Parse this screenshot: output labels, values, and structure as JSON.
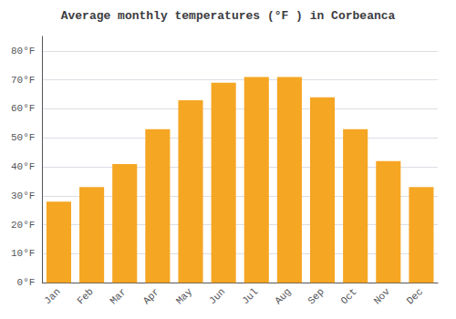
{
  "chart_data": {
    "type": "bar",
    "title": "Average monthly temperatures (°F ) in Corbeanca",
    "categories": [
      "Jan",
      "Feb",
      "Mar",
      "Apr",
      "May",
      "Jun",
      "Jul",
      "Aug",
      "Sep",
      "Oct",
      "Nov",
      "Dec"
    ],
    "values": [
      28,
      33,
      41,
      53,
      63,
      69,
      71,
      71,
      64,
      53,
      42,
      33
    ],
    "color": "#F5A623",
    "ylim": [
      0,
      85
    ],
    "yticks": [
      {
        "value": 0,
        "label": "0°F"
      },
      {
        "value": 10,
        "label": "10°F"
      },
      {
        "value": 20,
        "label": "20°F"
      },
      {
        "value": 30,
        "label": "30°F"
      },
      {
        "value": 40,
        "label": "40°F"
      },
      {
        "value": 50,
        "label": "50°F"
      },
      {
        "value": 60,
        "label": "60°F"
      },
      {
        "value": 70,
        "label": "70°F"
      },
      {
        "value": 80,
        "label": "80°F"
      }
    ],
    "grid": true
  }
}
